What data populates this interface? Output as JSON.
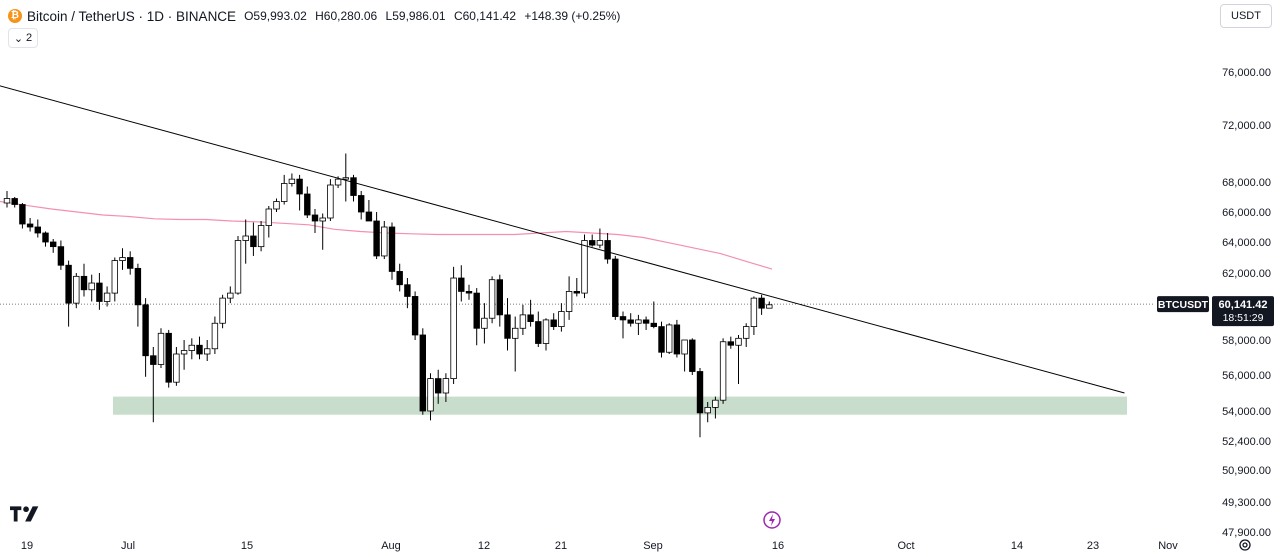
{
  "header": {
    "coin_icon": "bitcoin-icon",
    "symbol": "Bitcoin / TetherUS · 1D · BINANCE",
    "open": "O59,993.02",
    "high": "H60,280.06",
    "low": "L59,986.01",
    "close": "C60,141.42",
    "change": "+148.39 (+0.25%)",
    "indicator_count": "2"
  },
  "currency_button": "USDT",
  "price_tag": {
    "symbol": "BTCUSDT",
    "price": "60,141.42",
    "countdown": "18:51:29"
  },
  "colors": {
    "up": "#ffffff",
    "down": "#000000",
    "ma": "#f48fb1",
    "zone": "#c8ddcb",
    "trendline": "#000000"
  },
  "chart_data": {
    "type": "candlestick",
    "y_axis_labels": [
      "76,000.00",
      "72,000.00",
      "68,000.00",
      "66,000.00",
      "64,000.00",
      "62,000.00",
      "58,000.00",
      "56,000.00",
      "54,000.00",
      "52,400.00",
      "50,900.00",
      "49,300.00",
      "47,900.00"
    ],
    "x_axis_labels": [
      "19",
      "Jul",
      "15",
      "Aug",
      "12",
      "21",
      "Sep",
      "16",
      "Oct",
      "14",
      "23",
      "Nov"
    ],
    "last_price": 60141.42,
    "candles": [
      [
        66600,
        67400,
        66300,
        66900
      ],
      [
        66900,
        67000,
        66300,
        66500
      ],
      [
        66500,
        66600,
        64900,
        65200
      ],
      [
        65200,
        65600,
        64700,
        65000
      ],
      [
        65000,
        65500,
        64300,
        64600
      ],
      [
        64600,
        64700,
        63700,
        64000
      ],
      [
        64000,
        64200,
        63300,
        63700
      ],
      [
        63700,
        64100,
        62200,
        62500
      ],
      [
        62500,
        62800,
        58800,
        60200
      ],
      [
        60200,
        62000,
        59900,
        61800
      ],
      [
        61800,
        62600,
        60600,
        61000
      ],
      [
        61000,
        61900,
        60300,
        61400
      ],
      [
        61400,
        62000,
        59800,
        60300
      ],
      [
        60300,
        61200,
        60000,
        60800
      ],
      [
        60800,
        63000,
        60300,
        62800
      ],
      [
        62800,
        63600,
        62200,
        63000
      ],
      [
        63000,
        63400,
        61900,
        62300
      ],
      [
        62300,
        62600,
        58800,
        60100
      ],
      [
        60100,
        60500,
        55900,
        57100
      ],
      [
        57100,
        57600,
        53400,
        56600
      ],
      [
        56600,
        58700,
        56400,
        58400
      ],
      [
        58400,
        58600,
        55300,
        55600
      ],
      [
        55600,
        57600,
        55400,
        57200
      ],
      [
        57200,
        58000,
        56300,
        57400
      ],
      [
        57400,
        58100,
        56900,
        57700
      ],
      [
        57700,
        58200,
        56900,
        57200
      ],
      [
        57200,
        58000,
        56800,
        57500
      ],
      [
        57500,
        59400,
        57200,
        59000
      ],
      [
        59000,
        60700,
        58700,
        60500
      ],
      [
        60500,
        61200,
        60200,
        60800
      ],
      [
        60800,
        64400,
        60700,
        64100
      ],
      [
        64100,
        65500,
        62600,
        64400
      ],
      [
        64400,
        65300,
        63100,
        63700
      ],
      [
        63700,
        65400,
        63400,
        65100
      ],
      [
        65100,
        66400,
        64300,
        66200
      ],
      [
        66200,
        66900,
        66000,
        66700
      ],
      [
        66700,
        68500,
        66500,
        67900
      ],
      [
        67900,
        68600,
        67700,
        68200
      ],
      [
        68200,
        68500,
        66100,
        67200
      ],
      [
        67200,
        67700,
        65600,
        65800
      ],
      [
        65800,
        66200,
        64600,
        65400
      ],
      [
        65400,
        65900,
        63500,
        65600
      ],
      [
        65600,
        68200,
        65400,
        67800
      ],
      [
        67800,
        68400,
        67600,
        68200
      ],
      [
        68200,
        70000,
        66700,
        68300
      ],
      [
        68300,
        68500,
        66700,
        67100
      ],
      [
        67100,
        67400,
        65500,
        66000
      ],
      [
        66000,
        66800,
        65400,
        65400
      ],
      [
        65400,
        66000,
        62900,
        63100
      ],
      [
        63100,
        65400,
        62900,
        65000
      ],
      [
        65000,
        65300,
        61600,
        62100
      ],
      [
        62100,
        62600,
        60900,
        61300
      ],
      [
        61300,
        61700,
        59900,
        60600
      ],
      [
        60600,
        60900,
        58000,
        58300
      ],
      [
        58300,
        58700,
        53800,
        54000
      ],
      [
        54000,
        56100,
        53500,
        55800
      ],
      [
        55800,
        56300,
        54400,
        55000
      ],
      [
        55000,
        56100,
        54500,
        55800
      ],
      [
        55800,
        62400,
        55500,
        61700
      ],
      [
        61700,
        62500,
        60300,
        60900
      ],
      [
        60900,
        61300,
        60400,
        60800
      ],
      [
        60800,
        61100,
        57700,
        58700
      ],
      [
        58700,
        60200,
        57800,
        59300
      ],
      [
        59300,
        61800,
        59000,
        61600
      ],
      [
        61600,
        61900,
        58800,
        59500
      ],
      [
        59500,
        60500,
        57400,
        58100
      ],
      [
        58100,
        59400,
        56200,
        58700
      ],
      [
        58700,
        60100,
        58300,
        59500
      ],
      [
        59500,
        60400,
        58800,
        59100
      ],
      [
        59100,
        59700,
        57600,
        57800
      ],
      [
        57800,
        59300,
        57400,
        59200
      ],
      [
        59200,
        59600,
        58600,
        58800
      ],
      [
        58800,
        60200,
        58500,
        59700
      ],
      [
        59700,
        61800,
        59200,
        60900
      ],
      [
        60900,
        61700,
        60600,
        60800
      ],
      [
        60800,
        64500,
        60500,
        64100
      ],
      [
        64100,
        64500,
        63700,
        63800
      ],
      [
        63800,
        64900,
        63600,
        64100
      ],
      [
        64100,
        64600,
        62600,
        62900
      ],
      [
        62900,
        63100,
        59200,
        59400
      ],
      [
        59400,
        59700,
        58100,
        59200
      ],
      [
        59200,
        59600,
        58800,
        59000
      ],
      [
        59000,
        59500,
        58300,
        59200
      ],
      [
        59200,
        59400,
        58600,
        59000
      ],
      [
        59000,
        60300,
        58700,
        58800
      ],
      [
        58800,
        59100,
        57000,
        57300
      ],
      [
        57300,
        59000,
        57200,
        58900
      ],
      [
        58900,
        59200,
        57000,
        57200
      ],
      [
        57200,
        57900,
        56200,
        58000
      ],
      [
        58000,
        58100,
        56000,
        56200
      ],
      [
        56200,
        56400,
        52600,
        53900
      ],
      [
        53900,
        54500,
        53400,
        54200
      ],
      [
        54200,
        54800,
        53600,
        54600
      ],
      [
        54600,
        58100,
        54400,
        57900
      ],
      [
        57900,
        58200,
        57500,
        57700
      ],
      [
        57700,
        58300,
        55500,
        58100
      ],
      [
        58100,
        59000,
        57600,
        58800
      ],
      [
        58800,
        60600,
        58300,
        60500
      ],
      [
        60500,
        60700,
        59500,
        59900
      ],
      [
        59900,
        60300,
        59900,
        60100
      ]
    ],
    "ma_series": [
      66700,
      66450,
      66200,
      66000,
      65800,
      65700,
      65550,
      65500,
      65500,
      65400,
      65350,
      65250,
      65150,
      64850,
      64700,
      64600,
      64550,
      64500,
      64500,
      64500,
      64500,
      64600,
      64700,
      64600,
      64500,
      64300,
      63950,
      63600,
      63250,
      62750,
      62250
    ],
    "trendline": {
      "start": [
        -5,
        75600
      ],
      "end": [
        75,
        55000
      ]
    },
    "support_zone": {
      "low": 53800,
      "high": 54800
    }
  }
}
